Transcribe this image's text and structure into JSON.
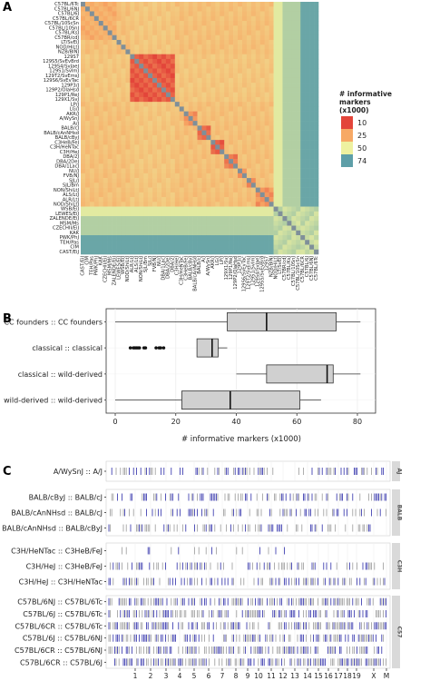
{
  "panels": {
    "a": "A",
    "b": "B",
    "c": "C"
  },
  "chart_data": [
    {
      "type": "heatmap",
      "strains": [
        "C57BL/6Tc",
        "C57BL/6NJ",
        "C57BL/6J",
        "C57BL/6CR",
        "C57BL/10ScSn",
        "C57BL/10SnJ",
        "C57BL/KsJ",
        "C57BR/cdJ",
        "LT/SvEiJ",
        "NOD/HiLtJ",
        "NZB/BlNJ",
        "129S7",
        "129S5/SvEvBrd",
        "129S4/SvJaeJ",
        "129S1/SvImJ",
        "129T2/SvEmsJ",
        "129S6/SvEvTac",
        "129P3/J",
        "129P2/OlaHsd",
        "129P1/ReJ",
        "129X1/SvJ",
        "LP/J",
        "LG/J",
        "AKR/J",
        "A/WySnJ",
        "A/J",
        "BALB/cJ",
        "BALB/cAnNHsd",
        "BALB/cByJ",
        "C3HeB/FeJ",
        "C3H/HeNTac",
        "C3H/HeJ",
        "DBA/2J",
        "DBA/2DeJ",
        "DBA/1LacJ",
        "NU/J",
        "FVB/NJ",
        "SJL/J",
        "SJL/Bm",
        "NON/ShiLtJ",
        "ALS/LtJ",
        "ALR/LtJ",
        "NOD/ShiLtJ",
        "WSB/EiJ",
        "LEWES/EiJ",
        "ZALENDE/EiJ",
        "MSM/Ms",
        "CZECHII/EiJ",
        "KAK",
        "PWK/PhJ",
        "TEH/Pas",
        "CIM",
        "CAST/EiJ"
      ],
      "legend": {
        "title": "# informative\nmarkers\n(x1000)",
        "values": [
          "10",
          "25",
          "50",
          "74"
        ],
        "colors": [
          "#e3453a",
          "#f7a965",
          "#eef1a0",
          "#5e9fa8"
        ]
      }
    },
    {
      "type": "box",
      "categories": [
        "CC founders :: CC founders",
        "classical :: classical",
        "classical :: wild-derived",
        "wild-derived :: wild-derived"
      ],
      "boxes": [
        {
          "min": 0,
          "q1": 37,
          "median": 50,
          "q3": 73,
          "max": 81
        },
        {
          "min": 27,
          "q1": 27,
          "median": 32,
          "q3": 34,
          "max": 37,
          "outliers": [
            5,
            6,
            6.5,
            7,
            7.5,
            8,
            9.5,
            10,
            13.5,
            14.5,
            15,
            16
          ]
        },
        {
          "min": 40,
          "q1": 50,
          "median": 70,
          "q3": 72,
          "max": 81
        },
        {
          "min": 0,
          "q1": 22,
          "median": 38,
          "q3": 61,
          "max": 68
        }
      ],
      "xlabel": "# informative markers (x1000)",
      "xticks": [
        "0",
        "20",
        "40",
        "60",
        "80"
      ],
      "xlim": [
        -3,
        86
      ]
    },
    {
      "type": "track",
      "groups": [
        {
          "facet": "AJ",
          "rows": [
            "A/WySnJ :: A/J"
          ]
        },
        {
          "facet": "BALB",
          "rows": [
            "BALB/cByJ :: BALB/cJ",
            "BALB/cAnNHsd :: BALB/cJ",
            "BALB/cAnNHsd :: BALB/cByJ"
          ]
        },
        {
          "facet": "C3H",
          "rows": [
            "C3H/HeNTac :: C3HeB/FeJ",
            "C3H/HeJ :: C3HeB/FeJ",
            "C3H/HeJ :: C3H/HeNTac"
          ]
        },
        {
          "facet": "C57",
          "rows": [
            "C57BL/6NJ :: C57BL/6Tc",
            "C57BL/6J :: C57BL/6Tc",
            "C57BL/6CR :: C57BL/6Tc",
            "C57BL/6J :: C57BL/6NJ",
            "C57BL/6CR :: C57BL/6NJ",
            "C57BL/6CR :: C57BL/6J"
          ]
        }
      ],
      "chromosomes": [
        "1",
        "2",
        "3",
        "4",
        "5",
        "6",
        "7",
        "8",
        "9",
        "10",
        "11",
        "12",
        "13",
        "14",
        "15",
        "16",
        "17",
        "18",
        "19",
        "X",
        "M"
      ],
      "mark_colors": {
        "blue": "#2c2ca8",
        "grey": "#9a9a9a"
      }
    }
  ]
}
